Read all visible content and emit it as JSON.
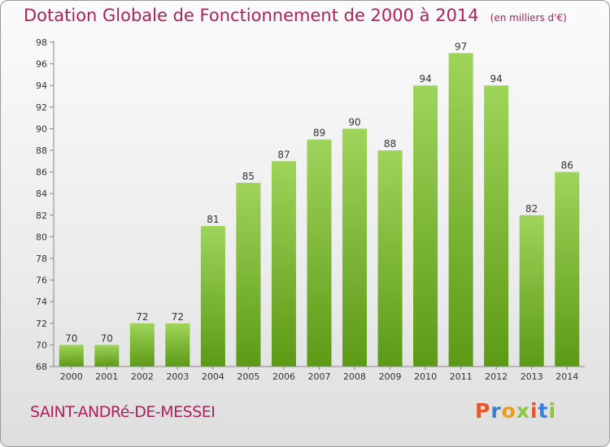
{
  "title": "Dotation Globale de Fonctionnement de 2000 à 2014",
  "unit_note": "(en milliers d'€)",
  "commune": "SAINT-ANDRé-DE-MESSEI",
  "logo": {
    "text": "Proxiti",
    "letter_colors": [
      "#e8572b",
      "#3a7fd6",
      "#f29a1c",
      "#8cc63f",
      "#e8572b",
      "#3a7fd6",
      "#8cc63f"
    ]
  },
  "colors": {
    "title": "#b0205a",
    "bar_top": "#9fd45a",
    "bar_bottom": "#5c9a16",
    "axis": "#888888",
    "label": "#333333"
  },
  "chart_data": {
    "type": "bar",
    "categories": [
      "2000",
      "2001",
      "2002",
      "2003",
      "2004",
      "2005",
      "2006",
      "2007",
      "2008",
      "2009",
      "2010",
      "2011",
      "2012",
      "2013",
      "2014"
    ],
    "values": [
      70,
      70,
      72,
      72,
      81,
      85,
      87,
      89,
      90,
      88,
      94,
      97,
      94,
      82,
      86
    ],
    "ylim": [
      68,
      98
    ],
    "yticks": [
      68,
      70,
      72,
      74,
      76,
      78,
      80,
      82,
      84,
      86,
      88,
      90,
      92,
      94,
      96,
      98
    ],
    "xlabel": "",
    "ylabel": "",
    "grid": false,
    "data_labels": true
  }
}
